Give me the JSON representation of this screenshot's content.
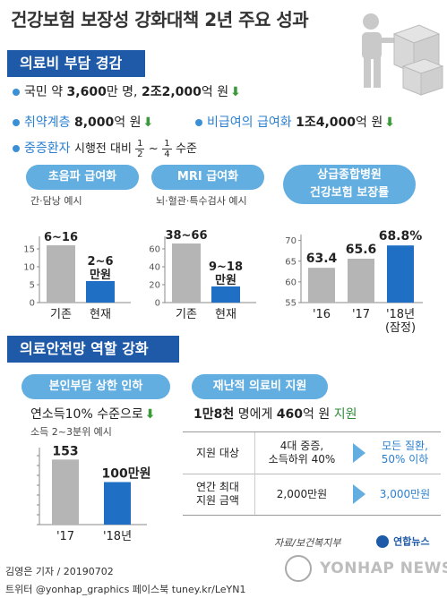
{
  "title": "건강보험 보장성 강화대책 2년 주요 성과",
  "section1": {
    "header": "의료비 부담 경감",
    "line1": {
      "a": "국민 약 ",
      "b": "3,600",
      "c": "만 명, ",
      "d": "2조2,000",
      "e": "억 원"
    },
    "line2": {
      "label": "취약계층",
      "value": "8,000",
      "unit": "억 원",
      "label2": "비급여의 급여화",
      "value2": "1조4,000",
      "unit2": "억 원"
    },
    "line3": {
      "label": "중증환자",
      "text": "시행전 대비 ",
      "frac1_num": "1",
      "frac1_den": "2",
      "tilde": "~",
      "frac2_num": "1",
      "frac2_den": "4",
      "suffix": "수준"
    }
  },
  "charts_top": {
    "ultrasound": {
      "pill": "초음파 급여화",
      "note": "간·담낭 예시"
    },
    "mri": {
      "pill": "MRI 급여화",
      "note": "뇌·혈관·특수검사 예시"
    },
    "hospital": {
      "pill_line1": "상급종합병원",
      "pill_line2": "건강보험 보장률"
    }
  },
  "section2": {
    "header": "의료안전망 역할 강화",
    "cap": {
      "pill": "본인부담 상한 인하",
      "line": "연소득10% 수준으로",
      "sub": "소득 2~3분위 예시"
    },
    "catastrophic": {
      "pill": "재난적 의료비 지원",
      "line": {
        "a": "1만8천",
        "b": " 명에게 ",
        "c": "460",
        "d": "억 원 ",
        "e": "지원"
      }
    },
    "comparison": {
      "row1": {
        "label": "지원 대상",
        "before_line1": "4대 중증,",
        "before_line2": "소득하위 40%",
        "after_line1": "모든 질환,",
        "after_line2": "50% 이하"
      },
      "row2": {
        "label_line1": "연간 최대",
        "label_line2": "지원 금액",
        "before": "2,000만원",
        "after": "3,000만원"
      }
    }
  },
  "source": "자료/보건복지부",
  "footer": {
    "line1": "김영은 기자 / 20190702",
    "line2": "트위터 @yonhap_graphics  페이스북 tuney.kr/LeYN1"
  },
  "logo": {
    "mark": "연합뉴스",
    "watermark": "YONHAP NEWS"
  },
  "colors": {
    "primary": "#1e5aa8",
    "accent": "#62aee0",
    "bar_gray": "#b5b5b5",
    "bar_blue": "#1f6fc4",
    "green": "#3a9a3a"
  },
  "icons": {
    "person_with_boxes": "person-carrying-boxes",
    "down_arrow": "green-down-arrow"
  },
  "chart_data": [
    {
      "type": "bar",
      "title": "초음파 급여화",
      "subtitle": "간·담낭 예시",
      "categories": [
        "기존",
        "현재"
      ],
      "values": [
        16,
        6
      ],
      "value_labels": [
        "6~16",
        "2~6\n만원"
      ],
      "ranges": [
        [
          6,
          16
        ],
        [
          2,
          6
        ]
      ],
      "unit": "만원",
      "yticks": [
        "0",
        "5",
        "10",
        "15"
      ],
      "ylim": [
        0,
        18
      ]
    },
    {
      "type": "bar",
      "title": "MRI 급여화",
      "subtitle": "뇌·혈관·특수검사 예시",
      "categories": [
        "기존",
        "현재"
      ],
      "values": [
        66,
        18
      ],
      "value_labels": [
        "38~66",
        "9~18\n만원"
      ],
      "ranges": [
        [
          38,
          66
        ],
        [
          9,
          18
        ]
      ],
      "unit": "만원",
      "yticks": [
        "0",
        "20",
        "40",
        "60"
      ],
      "ylim": [
        0,
        72
      ]
    },
    {
      "type": "bar",
      "title": "상급종합병원 건강보험 보장률",
      "categories": [
        "'16",
        "'17",
        "'18년\n(잠정)"
      ],
      "values": [
        63.4,
        65.6,
        68.8
      ],
      "value_labels": [
        "63.4",
        "65.6",
        "68.8%"
      ],
      "unit": "%",
      "yticks": [
        "55",
        "60",
        "65",
        "70"
      ],
      "ylim": [
        55,
        71
      ]
    },
    {
      "type": "bar",
      "title": "본인부담 상한 인하",
      "categories": [
        "'17",
        "'18년"
      ],
      "values": [
        153,
        100
      ],
      "value_labels": [
        "153",
        "100만원"
      ],
      "unit": "만원",
      "ylim": [
        0,
        160
      ]
    }
  ]
}
